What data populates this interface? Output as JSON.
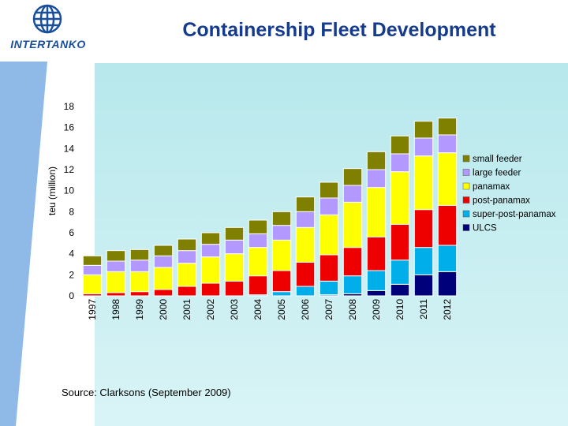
{
  "header": {
    "title": "Containership Fleet Development",
    "logo_text": "INTERTANKO"
  },
  "footer": {
    "source": "Source: Clarksons (September 2009)"
  },
  "colors": {
    "background_gradient_top": "#b7e8ec",
    "background_gradient_bottom": "#d9f4f6",
    "stripe": "#8fb9e6",
    "brand_blue": "#1a4f9c"
  },
  "chart_data": {
    "type": "bar",
    "stacked": true,
    "title": "",
    "xlabel": "",
    "ylabel": "teu (million)",
    "ylim": [
      0,
      18
    ],
    "yticks": [
      0,
      2,
      4,
      6,
      8,
      10,
      12,
      14,
      16,
      18
    ],
    "grid": false,
    "legend_position": "right",
    "categories": [
      "1997",
      "1998",
      "1999",
      "2000",
      "2001",
      "2002",
      "2003",
      "2004",
      "2005",
      "2006",
      "2007",
      "2008",
      "2009",
      "2010",
      "2011",
      "2012"
    ],
    "series": [
      {
        "name": "ULCS",
        "color": "#00007a",
        "values": [
          0,
          0,
          0,
          0,
          0,
          0,
          0,
          0,
          0,
          0,
          0.1,
          0.2,
          0.5,
          1.1,
          2.0,
          2.3
        ]
      },
      {
        "name": "super-post-panamax",
        "color": "#00aeea",
        "values": [
          0,
          0,
          0,
          0,
          0,
          0,
          0,
          0.1,
          0.4,
          0.9,
          1.3,
          1.7,
          1.9,
          2.3,
          2.6,
          2.5
        ]
      },
      {
        "name": "post-panamax",
        "color": "#ee0000",
        "values": [
          0.2,
          0.3,
          0.4,
          0.6,
          0.9,
          1.2,
          1.4,
          1.8,
          2.0,
          2.3,
          2.5,
          2.7,
          3.2,
          3.4,
          3.6,
          3.8
        ]
      },
      {
        "name": "panamax",
        "color": "#ffff00",
        "values": [
          1.8,
          2.0,
          1.9,
          2.1,
          2.2,
          2.5,
          2.6,
          2.7,
          2.9,
          3.3,
          3.8,
          4.3,
          4.7,
          5.0,
          5.1,
          5.0
        ]
      },
      {
        "name": "large feeder",
        "color": "#b399ff",
        "values": [
          0.9,
          1.0,
          1.1,
          1.1,
          1.2,
          1.2,
          1.3,
          1.3,
          1.4,
          1.5,
          1.6,
          1.6,
          1.7,
          1.7,
          1.7,
          1.7
        ]
      },
      {
        "name": "small feeder",
        "color": "#808000",
        "values": [
          0.9,
          1.0,
          1.0,
          1.0,
          1.1,
          1.1,
          1.2,
          1.3,
          1.3,
          1.4,
          1.5,
          1.6,
          1.7,
          1.7,
          1.6,
          1.6
        ]
      }
    ],
    "legend_order": [
      "small feeder",
      "large feeder",
      "panamax",
      "post-panamax",
      "super-post-panamax",
      "ULCS"
    ]
  }
}
